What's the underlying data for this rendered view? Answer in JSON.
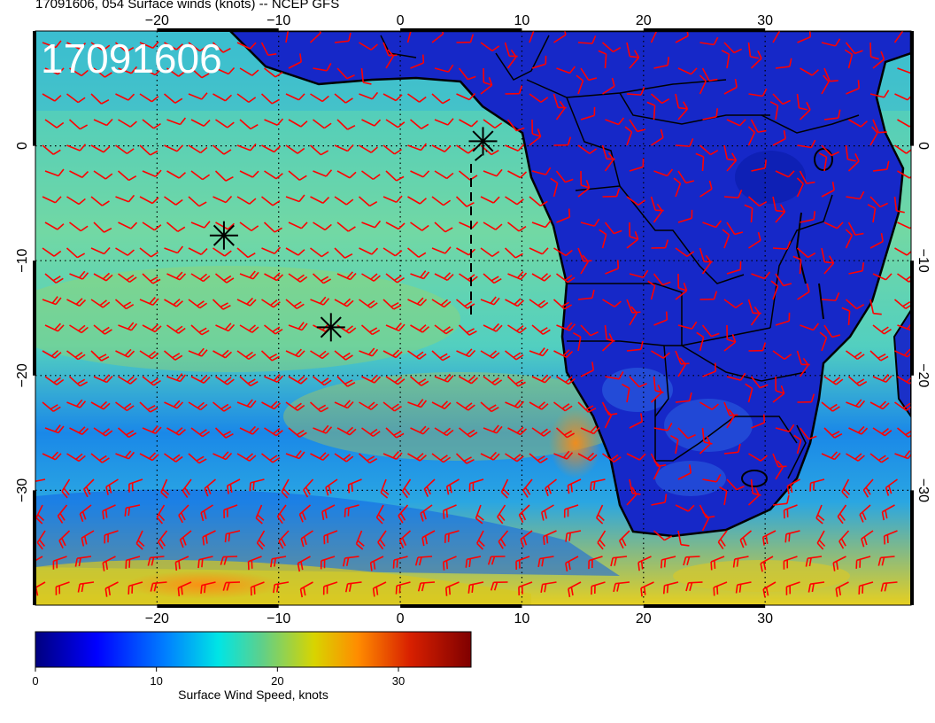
{
  "title": "17091606, 054 Surface winds (knots) -- NCEP GFS",
  "stamp": "17091606",
  "map": {
    "lon_range": [
      -30,
      42
    ],
    "lat_range": [
      -40,
      10
    ],
    "x_tick_labels_top": [
      "−20",
      "−10",
      "0",
      "10",
      "20",
      "30"
    ],
    "x_tick_labels_bottom": [
      "−20",
      "−10",
      "0",
      "10",
      "20",
      "30"
    ],
    "x_tick_values": [
      -20,
      -10,
      0,
      10,
      20,
      30
    ],
    "y_tick_labels_left": [
      "0",
      "−10",
      "−20",
      "−30"
    ],
    "y_tick_labels_right": [
      "0",
      "−10",
      "−20",
      "−30"
    ],
    "y_tick_values": [
      0,
      -10,
      -20,
      -30
    ],
    "graticule": "dotted black",
    "barb_color": "#ff0000",
    "coast_color": "#000000"
  },
  "markers": [
    {
      "name": "star-marker-1",
      "lon": -14.5,
      "lat": -7.8
    },
    {
      "name": "star-marker-2",
      "lon": -5.7,
      "lat": -15.8
    },
    {
      "name": "star-marker-3",
      "lon": 6.8,
      "lat": 0.4
    }
  ],
  "colorbar": {
    "label": "Surface Wind Speed, knots",
    "range": [
      0,
      36
    ],
    "tick_labels": [
      "0",
      "10",
      "20",
      "30"
    ],
    "tick_values": [
      0,
      10,
      20,
      30
    ],
    "colors": [
      "#00007f",
      "#0000ff",
      "#0080ff",
      "#00e5e5",
      "#5fd08a",
      "#d8d400",
      "#ff8c00",
      "#d82000",
      "#7f0000"
    ]
  },
  "wind_regimes": {
    "ocean_tropics": "southeasterly trades 10-20 kt",
    "subtropical_jet_band": "westerlies 20-30 kt near 35-40S",
    "continent": "light, under 10 kt"
  }
}
